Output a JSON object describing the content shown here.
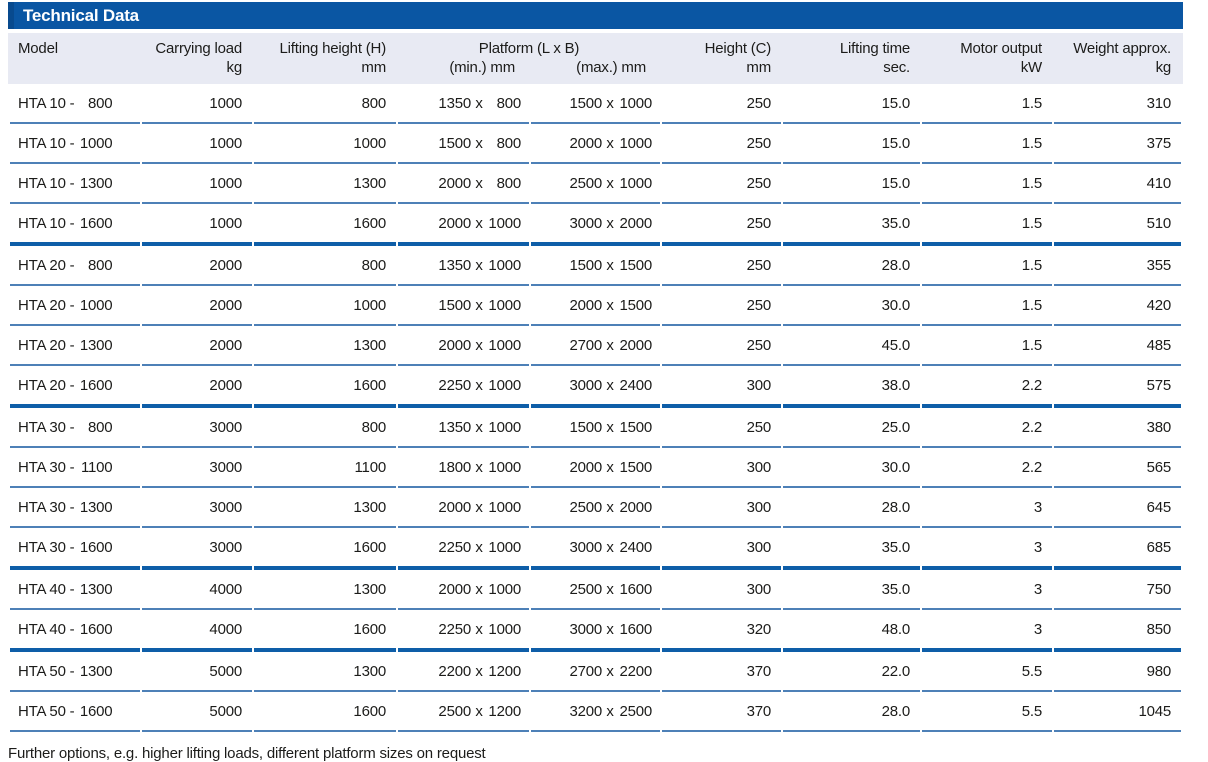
{
  "title": "Technical Data",
  "header": {
    "model": "Model",
    "load": {
      "label": "Carrying load",
      "unit": "kg"
    },
    "lift": {
      "label": "Lifting height (H)",
      "unit": "mm"
    },
    "platform": {
      "label": "Platform (L x B)",
      "min_unit": "(min.) mm",
      "max_unit": "(max.) mm"
    },
    "heightc": {
      "label": "Height (C)",
      "unit": "mm"
    },
    "time": {
      "label": "Lifting time",
      "unit": "sec."
    },
    "motor": {
      "label": "Motor output",
      "unit": "kW"
    },
    "weight": {
      "label": "Weight approx.",
      "unit": "kg"
    }
  },
  "rows": [
    {
      "model": "HTA 10 - 800",
      "load": "1000",
      "lift": "800",
      "min": "1350 x 800",
      "max": "1500 x 1000",
      "heightc": "250",
      "time": "15.0",
      "motor": "1.5",
      "weight": "310",
      "group_end": false
    },
    {
      "model": "HTA 10 - 1000",
      "load": "1000",
      "lift": "1000",
      "min": "1500 x 800",
      "max": "2000 x 1000",
      "heightc": "250",
      "time": "15.0",
      "motor": "1.5",
      "weight": "375",
      "group_end": false
    },
    {
      "model": "HTA 10 - 1300",
      "load": "1000",
      "lift": "1300",
      "min": "2000 x 800",
      "max": "2500 x 1000",
      "heightc": "250",
      "time": "15.0",
      "motor": "1.5",
      "weight": "410",
      "group_end": false
    },
    {
      "model": "HTA 10 - 1600",
      "load": "1000",
      "lift": "1600",
      "min": "2000 x 1000",
      "max": "3000 x 2000",
      "heightc": "250",
      "time": "35.0",
      "motor": "1.5",
      "weight": "510",
      "group_end": true
    },
    {
      "model": "HTA 20 - 800",
      "load": "2000",
      "lift": "800",
      "min": "1350 x 1000",
      "max": "1500 x 1500",
      "heightc": "250",
      "time": "28.0",
      "motor": "1.5",
      "weight": "355",
      "group_end": false
    },
    {
      "model": "HTA 20 - 1000",
      "load": "2000",
      "lift": "1000",
      "min": "1500 x 1000",
      "max": "2000 x 1500",
      "heightc": "250",
      "time": "30.0",
      "motor": "1.5",
      "weight": "420",
      "group_end": false
    },
    {
      "model": "HTA 20 - 1300",
      "load": "2000",
      "lift": "1300",
      "min": "2000 x 1000",
      "max": "2700 x 2000",
      "heightc": "250",
      "time": "45.0",
      "motor": "1.5",
      "weight": "485",
      "group_end": false
    },
    {
      "model": "HTA 20 - 1600",
      "load": "2000",
      "lift": "1600",
      "min": "2250 x 1000",
      "max": "3000 x 2400",
      "heightc": "300",
      "time": "38.0",
      "motor": "2.2",
      "weight": "575",
      "group_end": true
    },
    {
      "model": "HTA 30 - 800",
      "load": "3000",
      "lift": "800",
      "min": "1350 x 1000",
      "max": "1500 x 1500",
      "heightc": "250",
      "time": "25.0",
      "motor": "2.2",
      "weight": "380",
      "group_end": false
    },
    {
      "model": "HTA 30 - 1100",
      "load": "3000",
      "lift": "1100",
      "min": "1800 x 1000",
      "max": "2000 x 1500",
      "heightc": "300",
      "time": "30.0",
      "motor": "2.2",
      "weight": "565",
      "group_end": false
    },
    {
      "model": "HTA 30 - 1300",
      "load": "3000",
      "lift": "1300",
      "min": "2000 x 1000",
      "max": "2500 x 2000",
      "heightc": "300",
      "time": "28.0",
      "motor": "3",
      "weight": "645",
      "group_end": false
    },
    {
      "model": "HTA 30 - 1600",
      "load": "3000",
      "lift": "1600",
      "min": "2250 x 1000",
      "max": "3000 x 2400",
      "heightc": "300",
      "time": "35.0",
      "motor": "3",
      "weight": "685",
      "group_end": true
    },
    {
      "model": "HTA 40 - 1300",
      "load": "4000",
      "lift": "1300",
      "min": "2000 x 1000",
      "max": "2500 x 1600",
      "heightc": "300",
      "time": "35.0",
      "motor": "3",
      "weight": "750",
      "group_end": false
    },
    {
      "model": "HTA 40 - 1600",
      "load": "4000",
      "lift": "1600",
      "min": "2250 x 1000",
      "max": "3000 x 1600",
      "heightc": "320",
      "time": "48.0",
      "motor": "3",
      "weight": "850",
      "group_end": true
    },
    {
      "model": "HTA 50 - 1300",
      "load": "5000",
      "lift": "1300",
      "min": "2200 x 1200",
      "max": "2700 x 2200",
      "heightc": "370",
      "time": "22.0",
      "motor": "5.5",
      "weight": "980",
      "group_end": false
    },
    {
      "model": "HTA 50 - 1600",
      "load": "5000",
      "lift": "1600",
      "min": "2500 x 1200",
      "max": "3200 x 2500",
      "heightc": "370",
      "time": "28.0",
      "motor": "5.5",
      "weight": "1045",
      "group_end": false
    }
  ],
  "footer_note": "Further options, e.g. higher lifting loads, different platform sizes on request",
  "colors": {
    "title_bar": "#0a56a3",
    "title_bar_edge": "#084a8e",
    "header_row_bg": "#e8eaf3",
    "row_divider": "#4d80b7",
    "group_divider": "#0e5ea8",
    "text": "#1c1c1a"
  }
}
